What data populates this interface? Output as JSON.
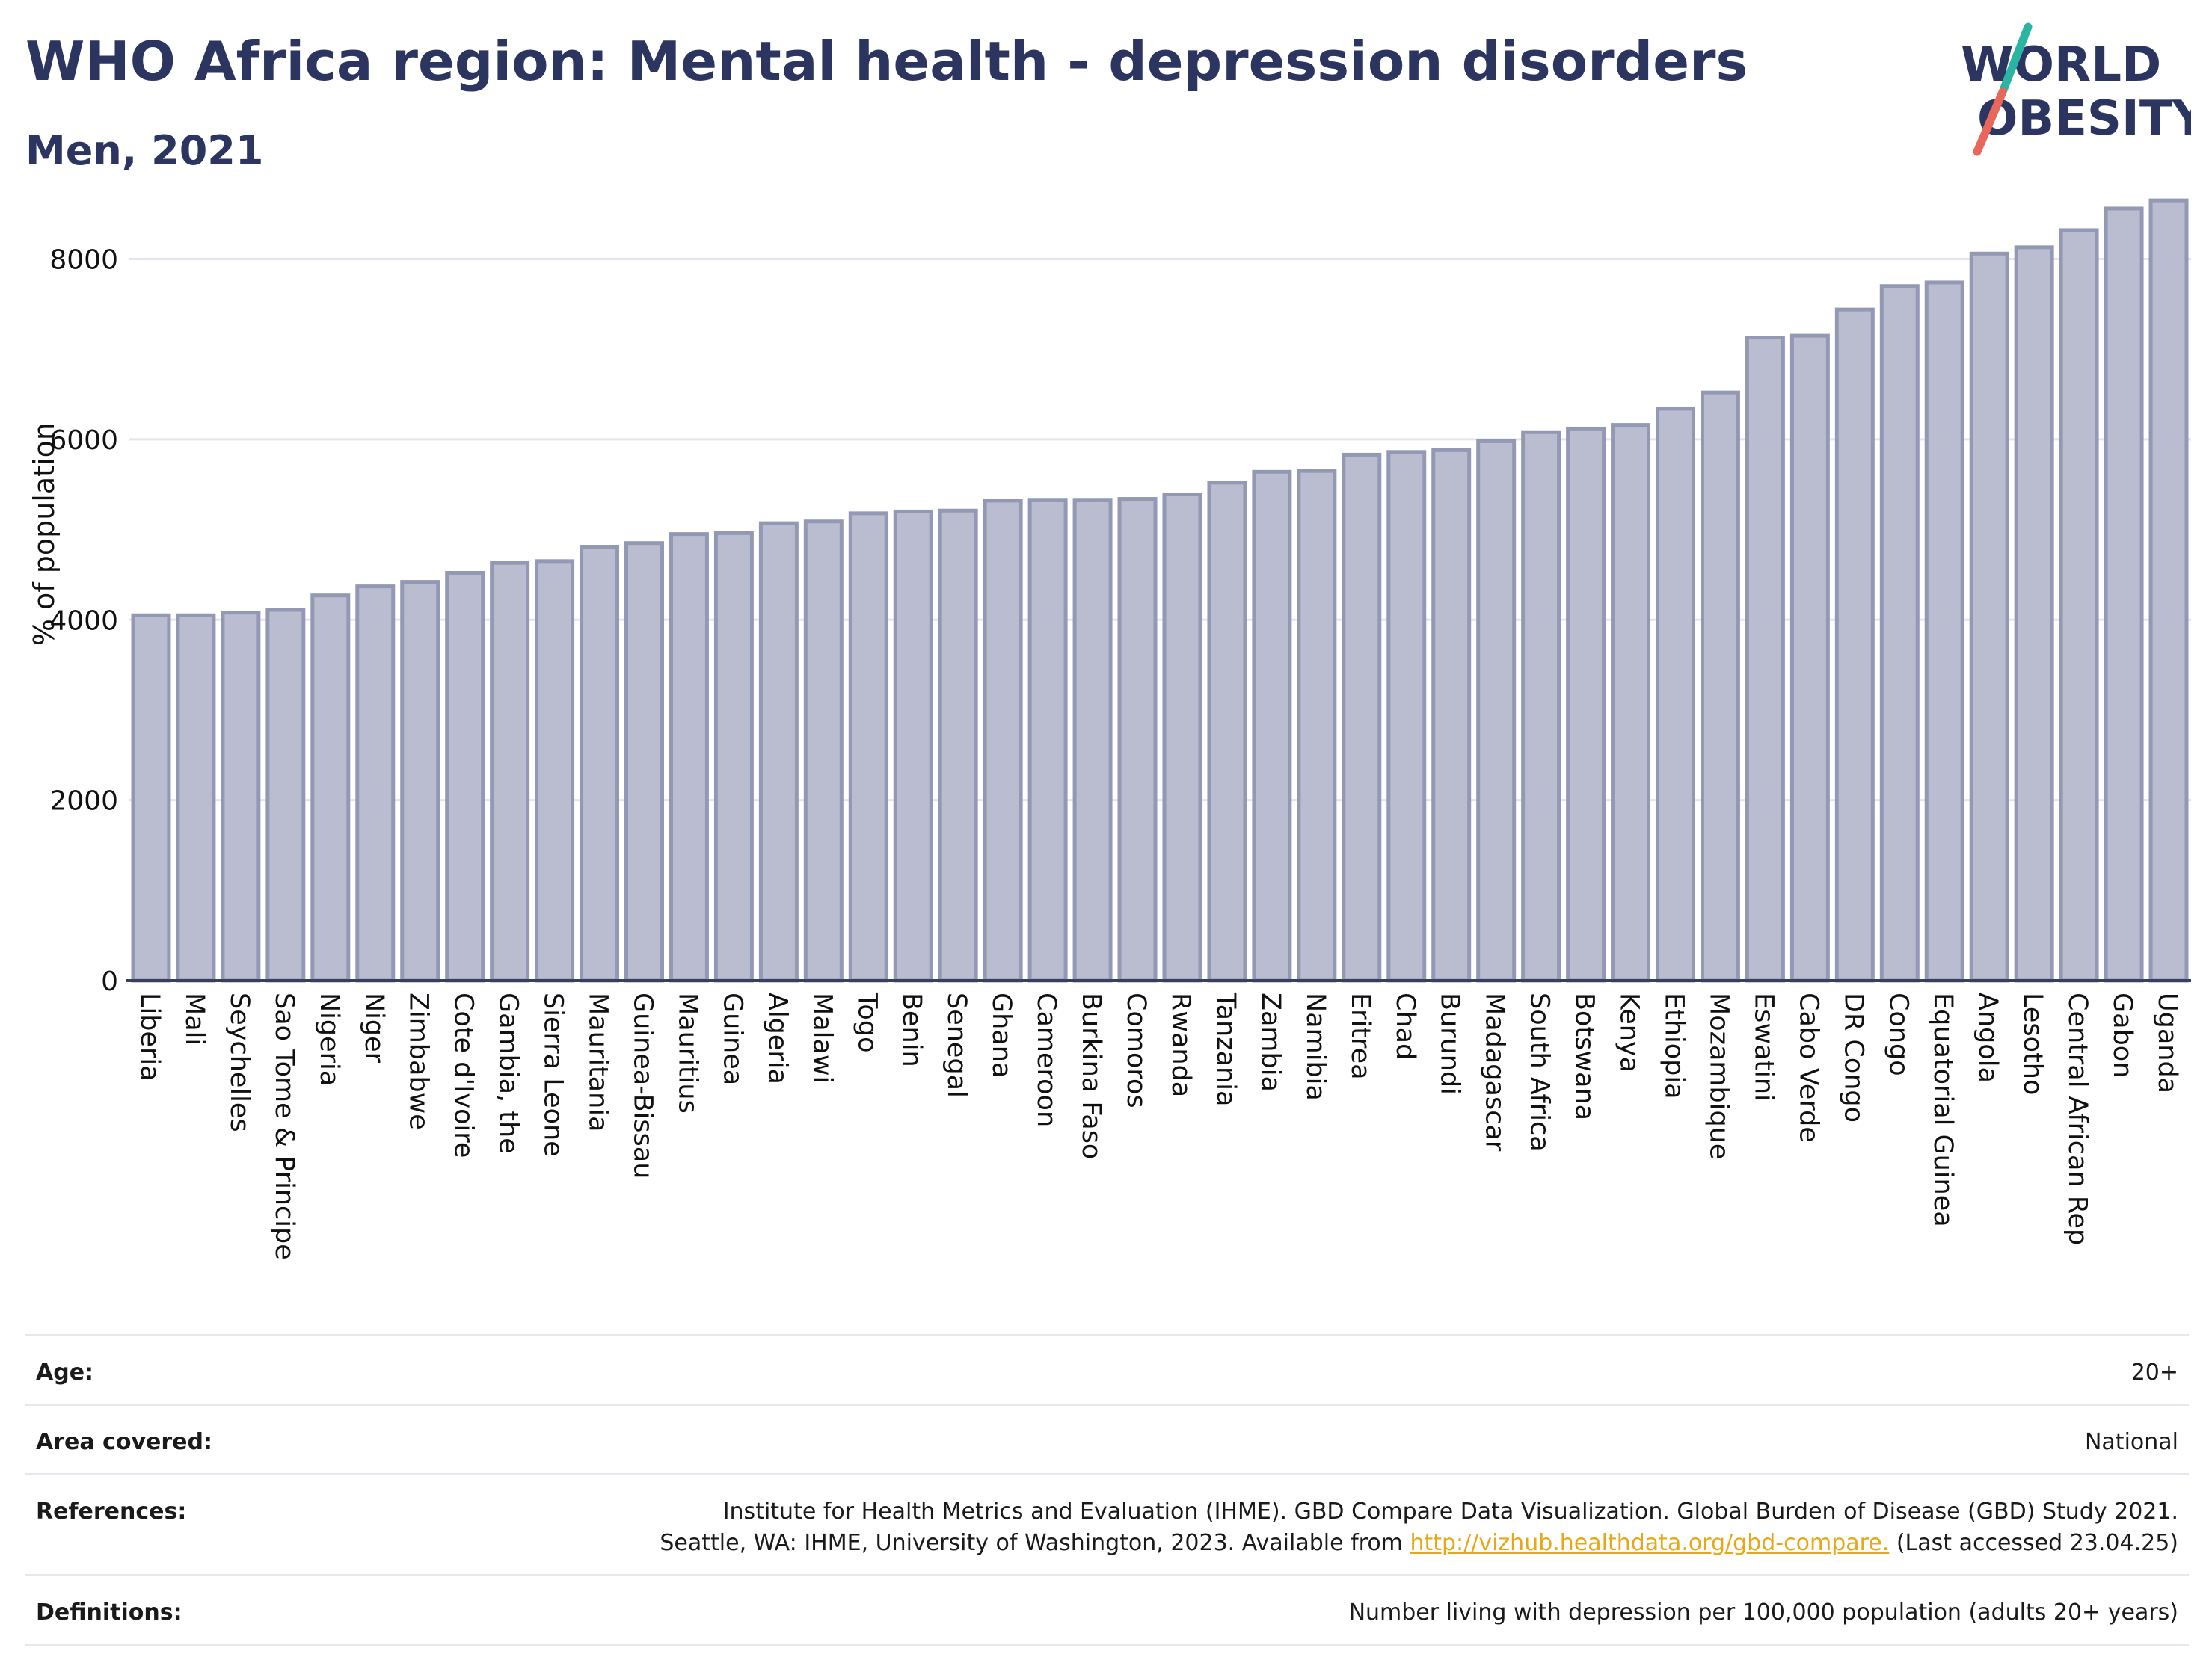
{
  "header": {
    "title": "WHO Africa region: Mental health - depression disorders",
    "subtitle": "Men, 2021"
  },
  "logo": {
    "line1": "WORLD",
    "line2": "OBESITY",
    "color_text": "#2b3560",
    "color_slash_top": "#2bb3a3",
    "color_slash_bottom": "#e8675a"
  },
  "chart_data": {
    "type": "bar",
    "title": "",
    "xlabel": "",
    "ylabel": "% of population",
    "ylim": [
      0,
      8800
    ],
    "yticks": [
      0,
      2000,
      4000,
      6000,
      8000
    ],
    "grid": true,
    "bar_color": "#b9bdcf",
    "bar_edge_color": "#9398b5",
    "categories": [
      "Liberia",
      "Mali",
      "Seychelles",
      "Sao Tome & Principe",
      "Nigeria",
      "Niger",
      "Zimbabwe",
      "Cote d'Ivoire",
      "Gambia, the",
      "Sierra Leone",
      "Mauritania",
      "Guinea-Bissau",
      "Mauritius",
      "Guinea",
      "Algeria",
      "Malawi",
      "Togo",
      "Benin",
      "Senegal",
      "Ghana",
      "Cameroon",
      "Burkina Faso",
      "Comoros",
      "Rwanda",
      "Tanzania",
      "Zambia",
      "Namibia",
      "Eritrea",
      "Chad",
      "Burundi",
      "Madagascar",
      "South Africa",
      "Botswana",
      "Kenya",
      "Ethiopia",
      "Mozambique",
      "Eswatini",
      "Cabo Verde",
      "DR Congo",
      "Congo",
      "Equatorial Guinea",
      "Angola",
      "Lesotho",
      "Central African Rep",
      "Gabon",
      "Uganda"
    ],
    "values": [
      4050,
      4050,
      4080,
      4110,
      4270,
      4370,
      4420,
      4520,
      4630,
      4650,
      4810,
      4850,
      4950,
      4960,
      5070,
      5090,
      5180,
      5200,
      5210,
      5320,
      5330,
      5330,
      5340,
      5390,
      5520,
      5640,
      5650,
      5830,
      5860,
      5880,
      5980,
      6080,
      6120,
      6160,
      6340,
      6520,
      7130,
      7150,
      7440,
      7700,
      7740,
      8060,
      8130,
      8320,
      8560,
      8650
    ]
  },
  "meta": {
    "rows": [
      {
        "label": "Age:",
        "value": "20+"
      },
      {
        "label": "Area covered:",
        "value": "National"
      },
      {
        "label": "References:",
        "value_line1": "Institute for Health Metrics and Evaluation (IHME). GBD Compare Data Visualization. Global Burden of Disease (GBD) Study 2021.",
        "value_line2_prefix": "Seattle, WA: IHME, University of Washington, 2023. Available from ",
        "link": "http://vizhub.healthdata.org/gbd-compare.",
        "value_line2_suffix": " (Last accessed 23.04.25)",
        "link_color": "#e6a817"
      },
      {
        "label": "Definitions:",
        "value": "Number living with depression per 100,000 population (adults 20+ years)"
      }
    ]
  }
}
